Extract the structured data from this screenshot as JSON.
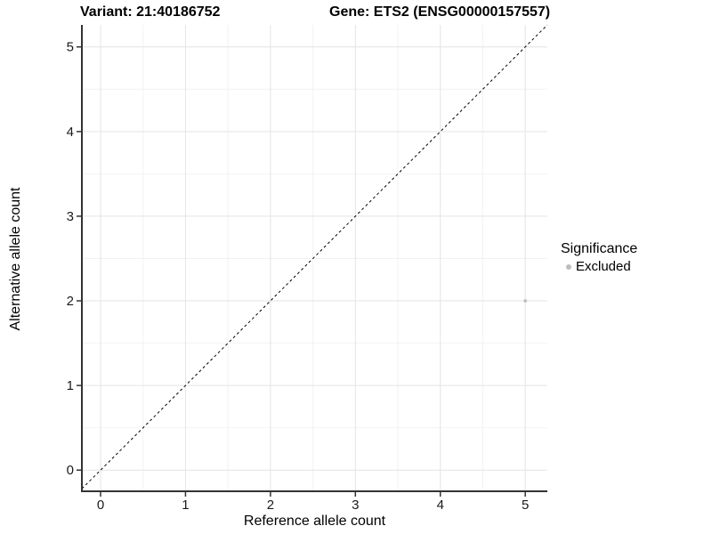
{
  "titles": {
    "variant": "Variant: 21:40186752",
    "gene": "Gene: ETS2 (ENSG00000157557)"
  },
  "chart_data": {
    "type": "scatter",
    "title_left": "Variant: 21:40186752",
    "title_right": "Gene: ETS2 (ENSG00000157557)",
    "xlabel": "Reference allele count",
    "ylabel": "Alternative allele count",
    "xlim": [
      -0.22,
      5.26
    ],
    "ylim": [
      -0.25,
      5.26
    ],
    "x_ticks": [
      0,
      1,
      2,
      3,
      4,
      5
    ],
    "y_ticks": [
      0,
      1,
      2,
      3,
      4,
      5
    ],
    "minor_grid_step": 0.5,
    "grid": true,
    "legend_position": "right",
    "reference_line": {
      "kind": "identity y=x",
      "style": "dashed",
      "color": "#000000"
    },
    "series": [
      {
        "name": "Excluded",
        "color": "#bebebe",
        "points": [
          {
            "x": 5,
            "y": 2
          }
        ]
      }
    ],
    "legend": {
      "title": "Significance",
      "items": [
        {
          "label": "Excluded",
          "color": "#bebebe"
        }
      ]
    },
    "style": {
      "axis_line_color": "#333333",
      "tick_color": "#333333",
      "tick_label_color": "#1a1a1a",
      "major_grid_color": "#e4e4e4",
      "minor_grid_color": "#f2f2f2",
      "background": "#ffffff",
      "point_radius_px": 1.9,
      "tick_label_font_px": 15
    }
  }
}
